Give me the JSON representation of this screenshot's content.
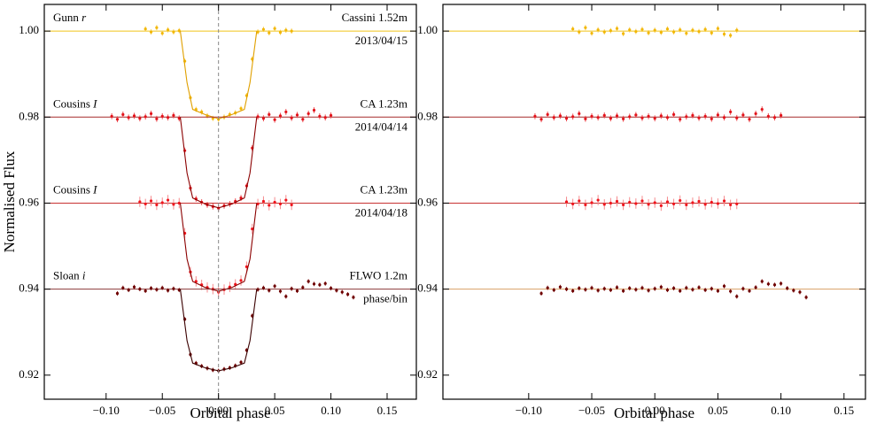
{
  "chart_data": [
    {
      "type": "scatter",
      "xlabel": "Orbital phase",
      "ylabel": "Normalised Flux",
      "xlim": [
        -0.155,
        0.176
      ],
      "ylim": [
        0.9144,
        1.0062
      ],
      "xticks": [
        {
          "value": -0.1,
          "label": "−0.10"
        },
        {
          "value": -0.05,
          "label": "−0.05"
        },
        {
          "value": 0,
          "label": "0.00"
        },
        {
          "value": 0.05,
          "label": "0.05"
        },
        {
          "value": 0.1,
          "label": "0.10"
        },
        {
          "value": 0.15,
          "label": "0.15"
        }
      ],
      "yticks": [
        {
          "value": 0.92,
          "label": "0.92"
        },
        {
          "value": 0.94,
          "label": "0.94"
        },
        {
          "value": 0.96,
          "label": "0.96"
        },
        {
          "value": 0.98,
          "label": "0.98"
        },
        {
          "value": 1.0,
          "label": "1.00"
        }
      ],
      "vline": 0,
      "series": [
        {
          "filter": "Gunn",
          "band": "r",
          "telescope": "Cassini 1.52m",
          "date": "2013/04/15",
          "color": "#f2b705",
          "error_color": "#f7c948",
          "baseline": 1.0,
          "baseline_color": "#f0c419",
          "yerr": 0.0006,
          "x": [
            -0.065,
            -0.06,
            -0.055,
            -0.05,
            -0.045,
            -0.04,
            -0.035,
            -0.03,
            -0.025,
            -0.02,
            -0.015,
            -0.01,
            -0.005,
            0,
            0.005,
            0.01,
            0.015,
            0.02,
            0.025,
            0.03,
            0.035,
            0.04,
            0.045,
            0.05,
            0.055,
            0.06,
            0.065
          ],
          "values": [
            1.0005,
            0.9998,
            1.0008,
            0.9995,
            1.0003,
            0.9998,
            1.0001,
            0.993,
            0.9845,
            0.9818,
            0.9812,
            0.9803,
            0.9797,
            0.9795,
            0.98,
            0.9806,
            0.981,
            0.982,
            0.985,
            0.9935,
            0.9998,
            1.0004,
            0.9996,
            1.0006,
            0.9997,
            1.0002,
            1.0
          ],
          "model": {
            "color": "#e0a000",
            "x": [
              -0.034,
              -0.028,
              -0.023,
              -0.012,
              0,
              0.012,
              0.023,
              0.028,
              0.034
            ],
            "values": [
              1.0,
              0.988,
              0.9818,
              0.9806,
              0.9796,
              0.9806,
              0.9818,
              0.988,
              1.0
            ]
          }
        },
        {
          "filter": "Cousins",
          "band": "I",
          "telescope": "CA 1.23m",
          "date": "2014/04/14",
          "color": "#e3131b",
          "error_color": "#ee5055",
          "baseline": 0.98,
          "baseline_color": "#a52a2a",
          "yerr": 0.0007,
          "x": [
            -0.095,
            -0.09,
            -0.085,
            -0.08,
            -0.075,
            -0.07,
            -0.065,
            -0.06,
            -0.055,
            -0.05,
            -0.045,
            -0.04,
            -0.035,
            -0.03,
            -0.025,
            -0.02,
            -0.015,
            -0.01,
            -0.005,
            0,
            0.005,
            0.01,
            0.015,
            0.02,
            0.025,
            0.03,
            0.035,
            0.04,
            0.045,
            0.05,
            0.055,
            0.06,
            0.065,
            0.07,
            0.075,
            0.08,
            0.085,
            0.09,
            0.095,
            0.1
          ],
          "values": [
            0.9802,
            0.9795,
            0.9806,
            0.9799,
            0.9803,
            0.9797,
            0.9801,
            0.9808,
            0.9796,
            0.9802,
            0.9799,
            0.9804,
            0.9797,
            0.9722,
            0.9635,
            0.961,
            0.9602,
            0.9596,
            0.9592,
            0.9588,
            0.9594,
            0.9598,
            0.9604,
            0.9612,
            0.964,
            0.9728,
            0.9801,
            0.9797,
            0.9806,
            0.9794,
            0.9803,
            0.9812,
            0.9798,
            0.9805,
            0.9795,
            0.9808,
            0.9816,
            0.9802,
            0.9799,
            0.9804
          ],
          "model": {
            "color": "#8b0000",
            "x": [
              -0.034,
              -0.028,
              -0.023,
              -0.012,
              0,
              0.012,
              0.023,
              0.028,
              0.034
            ],
            "values": [
              0.98,
              0.967,
              0.9612,
              0.9598,
              0.9589,
              0.9598,
              0.9612,
              0.967,
              0.98
            ]
          }
        },
        {
          "filter": "Cousins",
          "band": "I",
          "telescope": "CA 1.23m",
          "date": "2014/04/18",
          "color": "#f0141c",
          "error_color": "#f58a8d",
          "baseline": 0.96,
          "baseline_color": "#c83232",
          "yerr": 0.0012,
          "x": [
            -0.07,
            -0.065,
            -0.06,
            -0.055,
            -0.05,
            -0.045,
            -0.04,
            -0.035,
            -0.03,
            -0.025,
            -0.02,
            -0.015,
            -0.01,
            -0.005,
            0,
            0.005,
            0.01,
            0.015,
            0.02,
            0.025,
            0.03,
            0.035,
            0.04,
            0.045,
            0.05,
            0.055,
            0.06,
            0.065
          ],
          "values": [
            0.9603,
            0.9598,
            0.9605,
            0.9596,
            0.9601,
            0.9607,
            0.9597,
            0.96,
            0.953,
            0.944,
            0.9418,
            0.941,
            0.9404,
            0.94,
            0.9393,
            0.9399,
            0.9405,
            0.9411,
            0.942,
            0.9452,
            0.954,
            0.9598,
            0.9604,
            0.9595,
            0.9602,
            0.9598,
            0.9607,
            0.9596
          ],
          "model": {
            "color": "#8b0000",
            "x": [
              -0.034,
              -0.028,
              -0.023,
              -0.012,
              0,
              0.012,
              0.023,
              0.028,
              0.034
            ],
            "values": [
              0.96,
              0.947,
              0.9418,
              0.9404,
              0.9395,
              0.9404,
              0.9418,
              0.947,
              0.96
            ]
          }
        },
        {
          "filter": "Sloan",
          "band": "i",
          "telescope": "FLWO 1.2m",
          "date": "phase/bin",
          "color": "#6e0000",
          "error_color": "#8a2020",
          "baseline": 0.94,
          "baseline_color": "#8b3a3a",
          "yerr": 0.0005,
          "x": [
            -0.09,
            -0.085,
            -0.08,
            -0.075,
            -0.07,
            -0.065,
            -0.06,
            -0.055,
            -0.05,
            -0.045,
            -0.04,
            -0.035,
            -0.03,
            -0.025,
            -0.02,
            -0.015,
            -0.01,
            -0.005,
            0,
            0.005,
            0.01,
            0.015,
            0.02,
            0.025,
            0.03,
            0.035,
            0.04,
            0.045,
            0.05,
            0.055,
            0.06,
            0.065,
            0.07,
            0.075,
            0.08,
            0.085,
            0.09,
            0.095,
            0.1,
            0.105,
            0.11,
            0.115,
            0.12
          ],
          "values": [
            0.939,
            0.9403,
            0.9398,
            0.9405,
            0.94,
            0.9396,
            0.9402,
            0.9399,
            0.9403,
            0.9397,
            0.9401,
            0.9398,
            0.933,
            0.9248,
            0.9228,
            0.9221,
            0.9216,
            0.9212,
            0.921,
            0.9214,
            0.9217,
            0.9222,
            0.923,
            0.9258,
            0.9338,
            0.9399,
            0.9403,
            0.9397,
            0.9407,
            0.9395,
            0.9383,
            0.9401,
            0.9396,
            0.9404,
            0.9418,
            0.9412,
            0.941,
            0.9413,
            0.9402,
            0.9397,
            0.9393,
            0.9388,
            0.9381
          ],
          "model": {
            "color": "#3a0000",
            "x": [
              -0.034,
              -0.028,
              -0.023,
              -0.012,
              0,
              0.012,
              0.023,
              0.028,
              0.034
            ],
            "values": [
              0.94,
              0.928,
              0.9228,
              0.9217,
              0.921,
              0.9217,
              0.9228,
              0.928,
              0.94
            ]
          }
        }
      ]
    },
    {
      "type": "scatter",
      "xlabel": "Orbital phase",
      "xlim": [
        -0.168,
        0.167
      ],
      "ylim": [
        0.9144,
        1.0062
      ],
      "xticks": [
        {
          "value": -0.1,
          "label": "−0.10"
        },
        {
          "value": -0.05,
          "label": "−0.05"
        },
        {
          "value": 0,
          "label": "0.00"
        },
        {
          "value": 0.05,
          "label": "0.05"
        },
        {
          "value": 0.1,
          "label": "0.10"
        },
        {
          "value": 0.15,
          "label": "0.15"
        }
      ],
      "yticks": [
        {
          "value": 0.92,
          "label": "0.92"
        },
        {
          "value": 0.94,
          "label": "0.94"
        },
        {
          "value": 0.96,
          "label": "0.96"
        },
        {
          "value": 0.98,
          "label": "0.98"
        },
        {
          "value": 1.0,
          "label": "1.00"
        }
      ],
      "series": [
        {
          "color": "#f2b705",
          "error_color": "#f7c948",
          "baseline": 1.0,
          "baseline_color": "#f0c419",
          "yerr": 0.0006,
          "x": [
            -0.065,
            -0.06,
            -0.055,
            -0.05,
            -0.045,
            -0.04,
            -0.035,
            -0.03,
            -0.025,
            -0.02,
            -0.015,
            -0.01,
            -0.005,
            0,
            0.005,
            0.01,
            0.015,
            0.02,
            0.025,
            0.03,
            0.035,
            0.04,
            0.045,
            0.05,
            0.055,
            0.06,
            0.065
          ],
          "values": [
            1.0005,
            0.9998,
            1.0008,
            0.9995,
            1.0003,
            0.9998,
            1.0001,
            1.0006,
            0.9994,
            1.0003,
            0.9999,
            1.0004,
            0.9996,
            1.0002,
            0.9997,
            1.0005,
            0.9998,
            1.0003,
            0.9995,
            1.0002,
            0.9999,
            1.0004,
            0.9996,
            1.0006,
            0.9993,
            0.999,
            1.0002
          ]
        },
        {
          "color": "#e3131b",
          "error_color": "#ee5055",
          "baseline": 0.98,
          "baseline_color": "#a52a2a",
          "yerr": 0.0007,
          "x": [
            -0.095,
            -0.09,
            -0.085,
            -0.08,
            -0.075,
            -0.07,
            -0.065,
            -0.06,
            -0.055,
            -0.05,
            -0.045,
            -0.04,
            -0.035,
            -0.03,
            -0.025,
            -0.02,
            -0.015,
            -0.01,
            -0.005,
            0,
            0.005,
            0.01,
            0.015,
            0.02,
            0.025,
            0.03,
            0.035,
            0.04,
            0.045,
            0.05,
            0.055,
            0.06,
            0.065,
            0.07,
            0.075,
            0.08,
            0.085,
            0.09,
            0.095,
            0.1
          ],
          "values": [
            0.9802,
            0.9795,
            0.9806,
            0.9799,
            0.9803,
            0.9797,
            0.9801,
            0.9808,
            0.9796,
            0.9802,
            0.9799,
            0.9804,
            0.9797,
            0.9803,
            0.9796,
            0.9801,
            0.9805,
            0.9798,
            0.9802,
            0.9797,
            0.9803,
            0.9799,
            0.9806,
            0.9795,
            0.9801,
            0.9804,
            0.9798,
            0.9802,
            0.9796,
            0.9805,
            0.9799,
            0.9812,
            0.9798,
            0.9805,
            0.9795,
            0.9808,
            0.9818,
            0.9802,
            0.9799,
            0.9804
          ]
        },
        {
          "color": "#f0141c",
          "error_color": "#f58a8d",
          "baseline": 0.96,
          "baseline_color": "#c83232",
          "yerr": 0.0012,
          "x": [
            -0.07,
            -0.065,
            -0.06,
            -0.055,
            -0.05,
            -0.045,
            -0.04,
            -0.035,
            -0.03,
            -0.025,
            -0.02,
            -0.015,
            -0.01,
            -0.005,
            0,
            0.005,
            0.01,
            0.015,
            0.02,
            0.025,
            0.03,
            0.035,
            0.04,
            0.045,
            0.05,
            0.055,
            0.06,
            0.065
          ],
          "values": [
            0.9603,
            0.9598,
            0.9605,
            0.9596,
            0.9601,
            0.9607,
            0.9597,
            0.96,
            0.9604,
            0.9596,
            0.9602,
            0.9599,
            0.9605,
            0.9597,
            0.9601,
            0.9594,
            0.9603,
            0.9598,
            0.9606,
            0.9596,
            0.9601,
            0.9604,
            0.9597,
            0.9602,
            0.9599,
            0.9605,
            0.9596,
            0.9598
          ]
        },
        {
          "color": "#6e0000",
          "error_color": "#8a2020",
          "baseline": 0.94,
          "baseline_color": "#d9a066",
          "yerr": 0.0005,
          "x": [
            -0.09,
            -0.085,
            -0.08,
            -0.075,
            -0.07,
            -0.065,
            -0.06,
            -0.055,
            -0.05,
            -0.045,
            -0.04,
            -0.035,
            -0.03,
            -0.025,
            -0.02,
            -0.015,
            -0.01,
            -0.005,
            0,
            0.005,
            0.01,
            0.015,
            0.02,
            0.025,
            0.03,
            0.035,
            0.04,
            0.045,
            0.05,
            0.055,
            0.06,
            0.065,
            0.07,
            0.075,
            0.08,
            0.085,
            0.09,
            0.095,
            0.1,
            0.105,
            0.11,
            0.115,
            0.12
          ],
          "values": [
            0.939,
            0.9403,
            0.9398,
            0.9405,
            0.94,
            0.9396,
            0.9402,
            0.9399,
            0.9403,
            0.9397,
            0.9401,
            0.9398,
            0.9404,
            0.9396,
            0.9402,
            0.9399,
            0.9403,
            0.9397,
            0.9401,
            0.9405,
            0.9398,
            0.9402,
            0.9396,
            0.9403,
            0.9399,
            0.9404,
            0.9398,
            0.9401,
            0.9396,
            0.9407,
            0.9395,
            0.9383,
            0.9401,
            0.9396,
            0.9404,
            0.9418,
            0.9412,
            0.941,
            0.9413,
            0.9402,
            0.9397,
            0.9393,
            0.9381
          ]
        }
      ]
    }
  ]
}
